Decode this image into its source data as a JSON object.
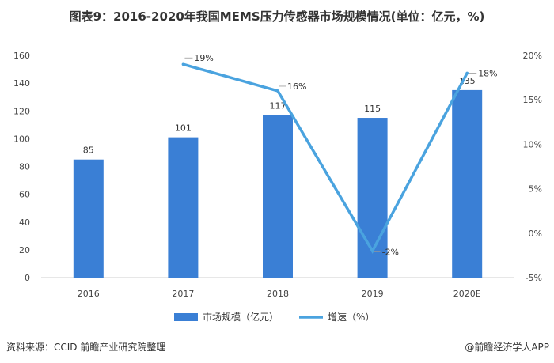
{
  "title": "图表9：2016-2020年我国MEMS压力传感器市场规模情况(单位：亿元，%)",
  "source": "资料来源：CCID 前瞻产业研究院整理",
  "brand": "@前瞻经济学人APP",
  "chart_data": {
    "type": "bar+line",
    "categories": [
      "2016",
      "2017",
      "2018",
      "2019",
      "2020E"
    ],
    "series": [
      {
        "name": "市场规模（亿元）",
        "type": "bar",
        "axis": "left",
        "values": [
          85,
          101,
          117,
          115,
          135
        ],
        "labels": [
          "85",
          "101",
          "117",
          "115",
          "135"
        ],
        "color": "#3a7fd5"
      },
      {
        "name": "增速（%）",
        "type": "line",
        "axis": "right",
        "values": [
          null,
          19,
          16,
          -2,
          18
        ],
        "labels": [
          "",
          "19%",
          "16%",
          "-2%",
          "18%"
        ],
        "color": "#4aa3df"
      }
    ],
    "y_left": {
      "min": 0,
      "max": 160,
      "step": 20,
      "ticks": [
        "0",
        "20",
        "40",
        "60",
        "80",
        "100",
        "120",
        "140",
        "160"
      ]
    },
    "y_right": {
      "min": -5,
      "max": 20,
      "step": 5,
      "ticks": [
        "-5%",
        "0%",
        "5%",
        "10%",
        "15%",
        "20%"
      ]
    },
    "legend": "bottom-center"
  }
}
